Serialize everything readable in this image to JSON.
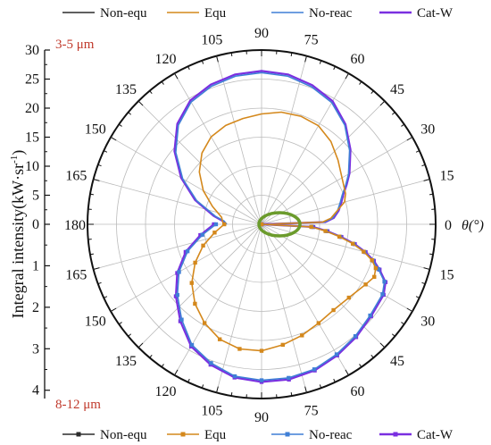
{
  "chart_data": {
    "type": "polar-line",
    "ylabel": "Integral intensity(kW·sr",
    "ylabel_sup": "-1",
    "ylabel_close": ")",
    "theta_label": "θ(°)",
    "upper_half": {
      "band": "3-5 μm",
      "r_ticks": [
        "30",
        "25",
        "20",
        "15",
        "10",
        "5",
        "0"
      ],
      "r_max": 30,
      "angle_ticks": [
        "0",
        "15",
        "30",
        "45",
        "60",
        "75",
        "90",
        "105",
        "120",
        "135",
        "150",
        "165",
        "180"
      ],
      "legend": [
        "Non-equ",
        "Equ",
        "No-reac",
        "Cat-W"
      ]
    },
    "lower_half": {
      "band": "8-12 μm",
      "r_ticks": [
        "1",
        "2",
        "3",
        "4"
      ],
      "r_max": 4.2,
      "angle_ticks": [
        "15",
        "30",
        "45",
        "60",
        "75",
        "90",
        "105",
        "120",
        "135",
        "150",
        "165"
      ],
      "legend": [
        "Non-equ",
        "Equ",
        "No-reac",
        "Cat-W"
      ]
    },
    "colors": {
      "Non-equ": "#2b2b2b",
      "Equ": "#d4881c",
      "No-reac": "#3f7fd6",
      "Cat-W": "#7a2fe0",
      "highlight": "#6b9b2c"
    },
    "series": [
      {
        "name": "Cat-W",
        "half": "upper",
        "theta": [
          0,
          2,
          5,
          10,
          15,
          20,
          25,
          30,
          40,
          50,
          60,
          70,
          80,
          90,
          100,
          110,
          120,
          130,
          140,
          150,
          160,
          170,
          175,
          180
        ],
        "r": [
          0,
          11,
          12.5,
          13.5,
          14.2,
          15,
          16.2,
          17.5,
          20,
          22.5,
          24.5,
          25.5,
          26.2,
          26.4,
          26.2,
          25.6,
          24.6,
          22.6,
          19.6,
          16,
          12.2,
          8.4,
          6.8,
          6.3
        ]
      },
      {
        "name": "No-reac",
        "half": "upper",
        "theta": [
          0,
          2,
          5,
          10,
          15,
          20,
          25,
          30,
          40,
          50,
          60,
          70,
          80,
          90,
          100,
          110,
          120,
          130,
          140,
          150,
          160,
          170,
          175,
          180
        ],
        "r": [
          0,
          10.8,
          12.3,
          13.3,
          14,
          14.8,
          16,
          17.3,
          19.8,
          22.3,
          24.2,
          25.2,
          25.9,
          26.1,
          25.9,
          25.3,
          24.3,
          22.3,
          19.3,
          15.7,
          11.9,
          8.1,
          6.5,
          6
        ]
      },
      {
        "name": "Equ",
        "half": "upper",
        "theta": [
          0,
          2,
          5,
          10,
          15,
          20,
          30,
          40,
          50,
          60,
          70,
          80,
          90,
          100,
          110,
          120,
          130,
          140,
          150,
          160,
          170,
          180
        ],
        "r": [
          0,
          10.5,
          12,
          13.2,
          14.8,
          15.4,
          16,
          17.2,
          18.6,
          19.6,
          19.8,
          19.6,
          19,
          18.5,
          18.1,
          17.4,
          16,
          14,
          11.6,
          9,
          7,
          6.6
        ]
      },
      {
        "name": "Non-equ",
        "half": "upper",
        "theta": [
          0,
          90,
          180
        ],
        "r": [
          0,
          0,
          0
        ]
      },
      {
        "name": "Cat-W",
        "half": "lower",
        "markers": true,
        "theta": [
          0,
          3,
          6,
          9,
          12,
          15,
          18,
          21,
          25,
          30,
          40,
          50,
          60,
          70,
          80,
          90,
          100,
          110,
          120,
          130,
          140,
          150,
          160,
          170,
          180
        ],
        "r": [
          0,
          1.25,
          1.6,
          1.95,
          2.3,
          2.6,
          2.85,
          3.05,
          3.3,
          3.4,
          3.45,
          3.55,
          3.65,
          3.75,
          3.8,
          3.8,
          3.75,
          3.6,
          3.4,
          3.05,
          2.7,
          2.35,
          1.95,
          1.5,
          1.15
        ]
      },
      {
        "name": "No-reac",
        "half": "lower",
        "markers": true,
        "theta": [
          0,
          3,
          6,
          9,
          12,
          15,
          18,
          21,
          25,
          30,
          40,
          50,
          60,
          70,
          80,
          90,
          100,
          110,
          120,
          130,
          140,
          150,
          160,
          170,
          180
        ],
        "r": [
          0,
          1.22,
          1.57,
          1.92,
          2.27,
          2.57,
          2.82,
          3.02,
          3.27,
          3.37,
          3.42,
          3.52,
          3.62,
          3.72,
          3.76,
          3.76,
          3.72,
          3.56,
          3.36,
          3.0,
          2.65,
          2.3,
          1.9,
          1.45,
          1.1
        ]
      },
      {
        "name": "Equ",
        "half": "lower",
        "markers": true,
        "theta": [
          0,
          3,
          6,
          9,
          12,
          15,
          18,
          21,
          25,
          30,
          40,
          50,
          60,
          70,
          80,
          90,
          100,
          110,
          120,
          130,
          140,
          150,
          160,
          170,
          180
        ],
        "r": [
          0,
          1.2,
          1.55,
          1.9,
          2.25,
          2.55,
          2.8,
          2.95,
          3.0,
          2.9,
          2.75,
          2.7,
          2.75,
          2.85,
          2.95,
          3.05,
          3.05,
          2.95,
          2.75,
          2.5,
          2.2,
          1.85,
          1.5,
          1.15,
          0.9
        ]
      },
      {
        "name": "Non-equ",
        "half": "lower",
        "markers": true,
        "theta": [
          0,
          90,
          180
        ],
        "r": [
          0,
          0,
          0
        ]
      }
    ]
  }
}
